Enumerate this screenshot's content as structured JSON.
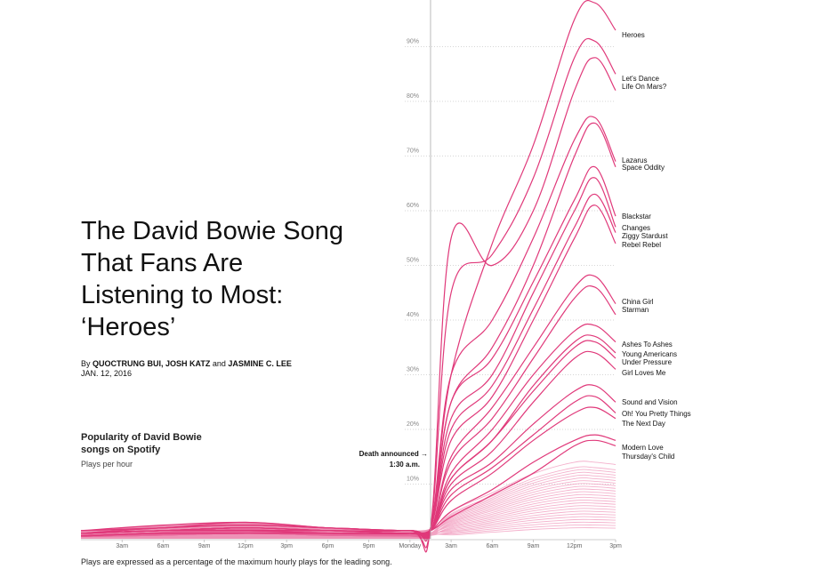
{
  "headline": {
    "title": "The David Bowie Song That Fans Are Listening to Most: ‘Heroes’",
    "byline_prefix": "By ",
    "author1": "QUOCTRUNG BUI, JOSH KATZ",
    "byline_and": " and ",
    "author2": "JASMINE C. LEE",
    "date": "JAN. 12, 2016"
  },
  "chart_header": {
    "title": "Popularity of David Bowie songs on Spotify",
    "subtitle": "Plays per hour"
  },
  "footnote": "Plays are expressed as a percentage of the maximum hourly plays for the leading song.",
  "colors": {
    "accent": "#e0397a",
    "faint": "#f2a3c3",
    "grid": "#d6d6d6"
  },
  "chart_data": {
    "type": "line",
    "title": "Popularity of David Bowie songs on Spotify",
    "ylabel": "Plays per hour (% of max hourly plays for leading song)",
    "x_unit": "hours since midnight Jan. 10, 2016",
    "xlim": [
      0,
      39
    ],
    "ylim": [
      0,
      100
    ],
    "y_ticks": [
      10,
      20,
      30,
      40,
      50,
      60,
      70,
      80,
      90
    ],
    "y_tick_labels": [
      "10%",
      "20%",
      "30%",
      "40%",
      "50%",
      "60%",
      "70%",
      "80%",
      "90%"
    ],
    "x_ticks": [
      3,
      6,
      9,
      12,
      15,
      18,
      21,
      24,
      27,
      30,
      33,
      36,
      39
    ],
    "x_tick_labels": [
      "3am",
      "6am",
      "9am",
      "12pm",
      "3pm",
      "6pm",
      "9pm",
      "Monday",
      "3am",
      "6am",
      "9am",
      "12pm",
      "3pm"
    ],
    "annotation": {
      "x": 25.5,
      "line1": "Death announced →",
      "line2": "1:30 a.m."
    },
    "labeled_series": [
      {
        "name": "Heroes",
        "x": [
          0,
          6,
          12,
          18,
          24,
          25.5,
          27,
          30,
          33,
          36,
          37.5,
          39
        ],
        "y": [
          1.5,
          2.5,
          3,
          2,
          1.5,
          2,
          30,
          54,
          72,
          95,
          98,
          93
        ]
      },
      {
        "name": "Let's Dance",
        "x": [
          0,
          6,
          12,
          18,
          24,
          25.5,
          27,
          30,
          33,
          36,
          37.5,
          39
        ],
        "y": [
          1.5,
          2,
          3,
          2,
          1.5,
          2,
          45,
          52,
          66,
          88,
          91,
          85
        ]
      },
      {
        "name": "Life On Mars?",
        "x": [
          0,
          6,
          12,
          18,
          24,
          25.5,
          27,
          30,
          33,
          36,
          37.5,
          39
        ],
        "y": [
          1.5,
          2,
          2.5,
          2,
          1.5,
          2,
          55,
          50,
          60,
          82,
          88,
          82
        ]
      },
      {
        "name": "Lazarus",
        "x": [
          0,
          6,
          12,
          18,
          24,
          25.5,
          27,
          30,
          33,
          36,
          37.5,
          39
        ],
        "y": [
          1,
          2,
          2.5,
          2,
          1.5,
          2,
          30,
          40,
          55,
          73,
          77,
          69
        ]
      },
      {
        "name": "Space Oddity",
        "x": [
          0,
          6,
          12,
          18,
          24,
          25.5,
          27,
          30,
          33,
          36,
          37.5,
          39
        ],
        "y": [
          1,
          2,
          2.5,
          2,
          1.5,
          2,
          25,
          35,
          50,
          70,
          76,
          68
        ]
      },
      {
        "name": "Blackstar",
        "x": [
          0,
          6,
          12,
          18,
          24,
          25.5,
          27,
          30,
          33,
          36,
          37.5,
          39
        ],
        "y": [
          1,
          1.5,
          2,
          1.5,
          1.5,
          2,
          25,
          33,
          47,
          62,
          68,
          59
        ]
      },
      {
        "name": "Changes",
        "x": [
          0,
          6,
          12,
          18,
          24,
          25.5,
          27,
          30,
          33,
          36,
          37.5,
          39
        ],
        "y": [
          1,
          1.5,
          2,
          1.5,
          1.5,
          2,
          22,
          30,
          45,
          60,
          66,
          57
        ]
      },
      {
        "name": "Ziggy Stardust",
        "x": [
          0,
          6,
          12,
          18,
          24,
          25.5,
          27,
          30,
          33,
          36,
          37.5,
          39
        ],
        "y": [
          1,
          1.5,
          2,
          1.5,
          1.5,
          2,
          20,
          28,
          42,
          57,
          63,
          56
        ]
      },
      {
        "name": "Rebel Rebel",
        "x": [
          0,
          6,
          12,
          18,
          24,
          25.5,
          27,
          30,
          33,
          36,
          37.5,
          39
        ],
        "y": [
          1,
          1.5,
          2,
          1.5,
          1.5,
          2,
          18,
          26,
          40,
          55,
          61,
          54
        ]
      },
      {
        "name": "China Girl",
        "x": [
          0,
          6,
          12,
          18,
          24,
          25.5,
          27,
          30,
          33,
          36,
          37.5,
          39
        ],
        "y": [
          1,
          1.5,
          2,
          1.5,
          1,
          1.5,
          15,
          24,
          35,
          46,
          48,
          43
        ]
      },
      {
        "name": "Starman",
        "x": [
          0,
          6,
          12,
          18,
          24,
          25.5,
          27,
          30,
          33,
          36,
          37.5,
          39
        ],
        "y": [
          1,
          1.5,
          2,
          1.5,
          1,
          1.5,
          14,
          22,
          33,
          44,
          46,
          41
        ]
      },
      {
        "name": "Ashes To Ashes",
        "x": [
          0,
          6,
          12,
          18,
          24,
          25.5,
          27,
          30,
          33,
          36,
          37.5,
          39
        ],
        "y": [
          1,
          1.5,
          1.5,
          1.5,
          1,
          1.5,
          12,
          20,
          30,
          38,
          39,
          36
        ]
      },
      {
        "name": "Young Americans",
        "x": [
          0,
          6,
          12,
          18,
          24,
          25.5,
          27,
          30,
          33,
          36,
          37.5,
          39
        ],
        "y": [
          1,
          1.5,
          1.5,
          1.5,
          1,
          1.5,
          11,
          18,
          28,
          36,
          37,
          34
        ]
      },
      {
        "name": "Under Pressure",
        "x": [
          0,
          6,
          12,
          18,
          24,
          25.5,
          27,
          30,
          33,
          36,
          37.5,
          39
        ],
        "y": [
          1,
          1.5,
          1.5,
          1.5,
          1,
          1.5,
          11,
          18,
          27,
          35,
          36,
          33
        ]
      },
      {
        "name": "Girl Loves Me",
        "x": [
          0,
          6,
          12,
          18,
          24,
          25.5,
          27,
          30,
          33,
          36,
          37.5,
          39
        ],
        "y": [
          1,
          1.5,
          1.5,
          1.5,
          1,
          1.5,
          10,
          16,
          25,
          33,
          34,
          31
        ]
      },
      {
        "name": "Sound and Vision",
        "x": [
          0,
          6,
          12,
          18,
          24,
          25.5,
          27,
          30,
          33,
          36,
          37.5,
          39
        ],
        "y": [
          1,
          1.5,
          1.5,
          1,
          1,
          1.5,
          9,
          14,
          21,
          27,
          28,
          25
        ]
      },
      {
        "name": "Oh! You Pretty Things",
        "x": [
          0,
          6,
          12,
          18,
          24,
          25.5,
          27,
          30,
          33,
          36,
          37.5,
          39
        ],
        "y": [
          1,
          1.5,
          1.5,
          1,
          1,
          1.5,
          8,
          13,
          19,
          25,
          26,
          23
        ]
      },
      {
        "name": "The Next Day",
        "x": [
          0,
          6,
          12,
          18,
          24,
          25.5,
          27,
          30,
          33,
          36,
          37.5,
          39
        ],
        "y": [
          0.5,
          1,
          1,
          1,
          1,
          1.5,
          7,
          12,
          18,
          23,
          24,
          22
        ]
      },
      {
        "name": "Modern Love",
        "x": [
          0,
          6,
          12,
          18,
          24,
          25.5,
          27,
          30,
          33,
          36,
          37.5,
          39
        ],
        "y": [
          0.5,
          1,
          1,
          1,
          1,
          1.5,
          5,
          9,
          14,
          18,
          19,
          18
        ]
      },
      {
        "name": "Thursday's Child",
        "x": [
          0,
          6,
          12,
          18,
          24,
          25.5,
          27,
          30,
          33,
          36,
          37.5,
          39
        ],
        "y": [
          0.5,
          1,
          1,
          1,
          1,
          1.5,
          4,
          8,
          12,
          17,
          18,
          17
        ]
      }
    ],
    "background_series_note": "Many other songs shown as faint lines below 15%",
    "background_series_peak_levels": [
      14,
      13,
      12.5,
      12,
      11.5,
      11,
      10.5,
      10,
      9.5,
      9,
      8.5,
      8,
      7.5,
      7,
      6.5,
      6,
      5.5,
      5,
      4.5,
      4,
      3.5,
      3,
      2.5,
      2
    ]
  }
}
